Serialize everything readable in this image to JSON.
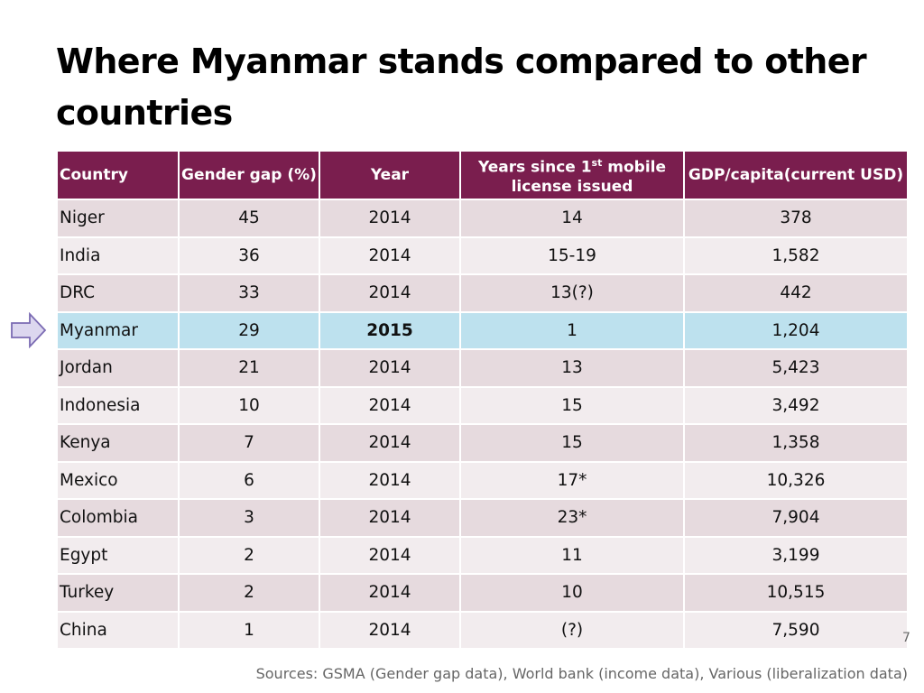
{
  "title": "Where Myanmar stands compared to other countries",
  "table": {
    "headers": {
      "country": "Country",
      "gender_gap": "Gender gap (%)",
      "year": "Year",
      "years_since_pre": "Years since 1",
      "years_since_sup": "st",
      "years_since_post": " mobile",
      "years_since_line2": "license issued",
      "gdp": "GDP/capita(current USD)"
    },
    "rows": [
      {
        "country": "Niger",
        "gap": "45",
        "year": "2014",
        "years": "14",
        "gdp": "378"
      },
      {
        "country": "India",
        "gap": "36",
        "year": "2014",
        "years": "15-19",
        "gdp": "1,582"
      },
      {
        "country": "DRC",
        "gap": "33",
        "year": "2014",
        "years": "13(?)",
        "gdp": "442"
      },
      {
        "country": "Myanmar",
        "gap": "29",
        "year": "2015",
        "years": "1",
        "gdp": "1,204"
      },
      {
        "country": "Jordan",
        "gap": "21",
        "year": "2014",
        "years": "13",
        "gdp": "5,423"
      },
      {
        "country": "Indonesia",
        "gap": "10",
        "year": "2014",
        "years": "15",
        "gdp": "3,492"
      },
      {
        "country": "Kenya",
        "gap": "7",
        "year": "2014",
        "years": "15",
        "gdp": "1,358"
      },
      {
        "country": "Mexico",
        "gap": "6",
        "year": "2014",
        "years": "17*",
        "gdp": "10,326"
      },
      {
        "country": "Colombia",
        "gap": "3",
        "year": "2014",
        "years": "23*",
        "gdp": "7,904"
      },
      {
        "country": "Egypt",
        "gap": "2",
        "year": "2014",
        "years": "11",
        "gdp": "3,199"
      },
      {
        "country": "Turkey",
        "gap": "2",
        "year": "2014",
        "years": "10",
        "gdp": "10,515"
      },
      {
        "country": "China",
        "gap": "1",
        "year": "2014",
        "years": "(?)",
        "gdp": "7,590"
      }
    ],
    "highlight_country": "Myanmar"
  },
  "slide_number": "7",
  "sources": "Sources: GSMA (Gender gap data), World bank (income data), Various (liberalization data)",
  "colors": {
    "header_bg": "#7a1e4e",
    "row_dark": "#e6dade",
    "row_light": "#f2ecee",
    "highlight": "#bde1ee",
    "arrow_fill": "#dcd7ef",
    "arrow_stroke": "#7b6bb3"
  },
  "icons": {
    "pointer": "right-arrow-icon"
  }
}
